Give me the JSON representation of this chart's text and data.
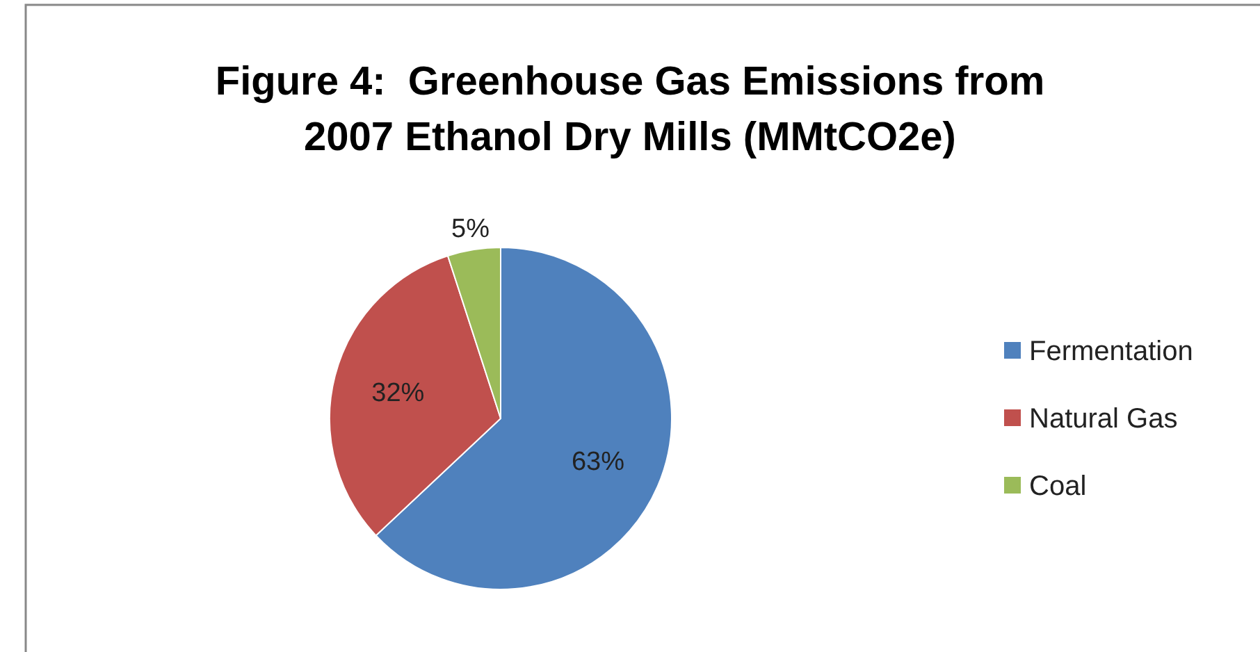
{
  "chart_data": {
    "type": "pie",
    "title": "Figure 4:  Greenhouse Gas Emissions from 2007 Ethanol Dry Mills (MMtCO2e)",
    "categories": [
      "Fermentation",
      "Natural Gas",
      "Coal"
    ],
    "values": [
      63,
      32,
      5
    ],
    "colors": [
      "#4f81bd",
      "#c0504d",
      "#9bbb59"
    ],
    "value_labels": [
      "63%",
      "32%",
      "5%"
    ],
    "legend": "right"
  }
}
